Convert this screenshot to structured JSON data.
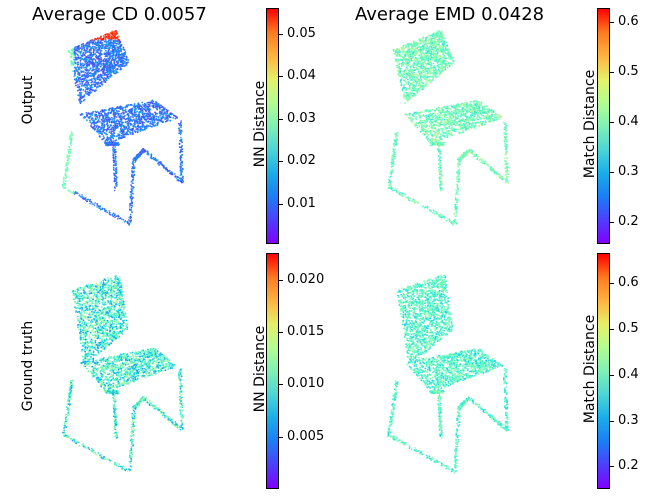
{
  "titles": {
    "cd": "Average CD 0.0057",
    "emd": "Average EMD 0.0428"
  },
  "row_labels": {
    "top": "Output",
    "bottom": "Ground truth"
  },
  "colorbars": {
    "top_left": {
      "label": "NN Distance",
      "ticks": [
        "0.05",
        "0.04",
        "0.03",
        "0.02",
        "0.01"
      ],
      "range": [
        0.0005,
        0.056
      ]
    },
    "top_right": {
      "label": "Match Distance",
      "ticks": [
        "0.6",
        "0.5",
        "0.4",
        "0.3",
        "0.2"
      ],
      "range": [
        0.15,
        0.625
      ]
    },
    "bot_left": {
      "label": "NN Distance",
      "ticks": [
        "0.020",
        "0.015",
        "0.010",
        "0.005"
      ],
      "range": [
        0.0008,
        0.022
      ]
    },
    "bot_right": {
      "label": "Match Distance",
      "ticks": [
        "0.6",
        "0.5",
        "0.4",
        "0.3",
        "0.2"
      ],
      "range": [
        0.15,
        0.66
      ]
    }
  },
  "colormap": "rainbow"
}
